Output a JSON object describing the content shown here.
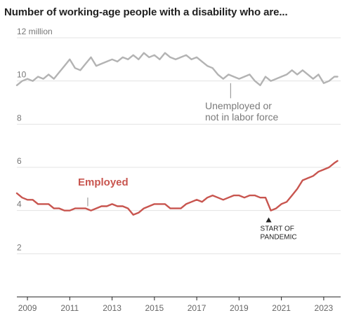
{
  "chart_data": {
    "type": "line",
    "title": "Number of working-age people with a disability who are...",
    "y_unit_label": "12 million",
    "ylim": [
      0,
      12
    ],
    "yticks": [
      2,
      4,
      6,
      8,
      10
    ],
    "xlim": [
      2008.5,
      2023.8
    ],
    "xticks": [
      "2009",
      "2011",
      "2013",
      "2015",
      "2017",
      "2019",
      "2021",
      "2023"
    ],
    "grid": true,
    "series": [
      {
        "name": "Unemployed or not in labor force",
        "label_lines": [
          "Unemployed or",
          "not in labor force"
        ],
        "color": "#b3b3b3",
        "x": [
          2008.5,
          2008.75,
          2009.0,
          2009.25,
          2009.5,
          2009.75,
          2010.0,
          2010.25,
          2010.5,
          2010.75,
          2011.0,
          2011.25,
          2011.5,
          2011.75,
          2012.0,
          2012.25,
          2012.5,
          2012.75,
          2013.0,
          2013.25,
          2013.5,
          2013.75,
          2014.0,
          2014.25,
          2014.5,
          2014.75,
          2015.0,
          2015.25,
          2015.5,
          2015.75,
          2016.0,
          2016.25,
          2016.5,
          2016.75,
          2017.0,
          2017.25,
          2017.5,
          2017.75,
          2018.0,
          2018.25,
          2018.5,
          2018.75,
          2019.0,
          2019.25,
          2019.5,
          2019.75,
          2020.0,
          2020.25,
          2020.5,
          2020.75,
          2021.0,
          2021.25,
          2021.5,
          2021.75,
          2022.0,
          2022.25,
          2022.5,
          2022.75,
          2023.0,
          2023.25,
          2023.5,
          2023.65
        ],
        "values": [
          9.8,
          10.0,
          10.1,
          10.0,
          10.2,
          10.1,
          10.3,
          10.1,
          10.4,
          10.7,
          11.0,
          10.6,
          10.5,
          10.8,
          11.1,
          10.7,
          10.8,
          10.9,
          11.0,
          10.9,
          11.1,
          11.0,
          11.2,
          11.0,
          11.3,
          11.1,
          11.2,
          11.0,
          11.3,
          11.1,
          11.0,
          11.1,
          11.2,
          11.0,
          11.1,
          10.9,
          10.7,
          10.6,
          10.3,
          10.1,
          10.3,
          10.2,
          10.1,
          10.2,
          10.3,
          10.0,
          9.8,
          10.2,
          10.0,
          10.1,
          10.2,
          10.3,
          10.5,
          10.3,
          10.5,
          10.3,
          10.1,
          10.3,
          9.9,
          10.0,
          10.2,
          10.2
        ]
      },
      {
        "name": "Employed",
        "color": "#c8554f",
        "x": [
          2008.5,
          2008.75,
          2009.0,
          2009.25,
          2009.5,
          2009.75,
          2010.0,
          2010.25,
          2010.5,
          2010.75,
          2011.0,
          2011.25,
          2011.5,
          2011.75,
          2012.0,
          2012.25,
          2012.5,
          2012.75,
          2013.0,
          2013.25,
          2013.5,
          2013.75,
          2014.0,
          2014.25,
          2014.5,
          2014.75,
          2015.0,
          2015.25,
          2015.5,
          2015.75,
          2016.0,
          2016.25,
          2016.5,
          2016.75,
          2017.0,
          2017.25,
          2017.5,
          2017.75,
          2018.0,
          2018.25,
          2018.5,
          2018.75,
          2019.0,
          2019.25,
          2019.5,
          2019.75,
          2020.0,
          2020.25,
          2020.5,
          2020.75,
          2021.0,
          2021.25,
          2021.5,
          2021.75,
          2022.0,
          2022.25,
          2022.5,
          2022.75,
          2023.0,
          2023.25,
          2023.5,
          2023.65
        ],
        "values": [
          4.8,
          4.6,
          4.5,
          4.5,
          4.3,
          4.3,
          4.3,
          4.1,
          4.1,
          4.0,
          4.0,
          4.1,
          4.1,
          4.1,
          4.0,
          4.1,
          4.2,
          4.2,
          4.3,
          4.2,
          4.2,
          4.1,
          3.8,
          3.9,
          4.1,
          4.2,
          4.3,
          4.3,
          4.3,
          4.1,
          4.1,
          4.1,
          4.3,
          4.4,
          4.5,
          4.4,
          4.6,
          4.7,
          4.6,
          4.5,
          4.6,
          4.7,
          4.7,
          4.6,
          4.7,
          4.7,
          4.6,
          4.6,
          4.0,
          4.1,
          4.3,
          4.4,
          4.7,
          5.0,
          5.4,
          5.5,
          5.6,
          5.8,
          5.9,
          6.0,
          6.2,
          6.3
        ]
      }
    ],
    "annotations": {
      "employed_label": "Employed",
      "pandemic_marker": {
        "x": 2020.4,
        "label_lines": [
          "START OF",
          "PANDEMIC"
        ]
      }
    }
  }
}
